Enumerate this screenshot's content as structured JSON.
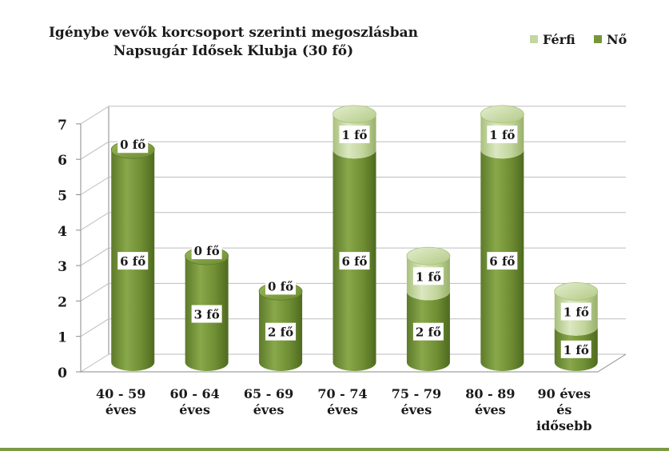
{
  "chart_data": {
    "type": "bar",
    "stacked": true,
    "style": "3d-cylinder",
    "title": "Igénybe vevők korcsoport szerinti megoszlásban",
    "subtitle": "Napsugár Idősek Klubja (30 fő)",
    "categories": [
      [
        "40 - 59",
        "éves"
      ],
      [
        "60 - 64",
        "éves"
      ],
      [
        "65 - 69",
        "éves"
      ],
      [
        "70 - 74",
        "éves"
      ],
      [
        "75 - 79",
        "éves"
      ],
      [
        "80 - 89",
        "éves"
      ],
      [
        "90 éves",
        "és",
        "idősebb"
      ]
    ],
    "series": [
      {
        "name": "Nő",
        "values": [
          6,
          3,
          2,
          6,
          2,
          6,
          1
        ],
        "labels": [
          "6 fő",
          "3 fő",
          "2 fő",
          "6 fő",
          "2 fő",
          "6 fő",
          "1 fő"
        ]
      },
      {
        "name": "Férfi",
        "values": [
          0,
          0,
          0,
          1,
          1,
          1,
          1
        ],
        "labels": [
          "0 fő",
          "0 fő",
          "0 fő",
          "1 fő",
          "1 fő",
          "1 fő",
          "1 fő"
        ]
      }
    ],
    "ylim": [
      0,
      7
    ],
    "yticks": [
      "0",
      "1",
      "2",
      "3",
      "4",
      "5",
      "6",
      "7"
    ],
    "grid": true,
    "legend": "top-right",
    "colors": {
      "background": "#7b9a45",
      "plot_area": "#ffffff",
      "no": "#77963a",
      "no_dark": "#4e6a1f",
      "ferfi": "#c5d7a0",
      "ferfi_dark": "#98b06a",
      "grid": "#bfbfbf"
    }
  }
}
